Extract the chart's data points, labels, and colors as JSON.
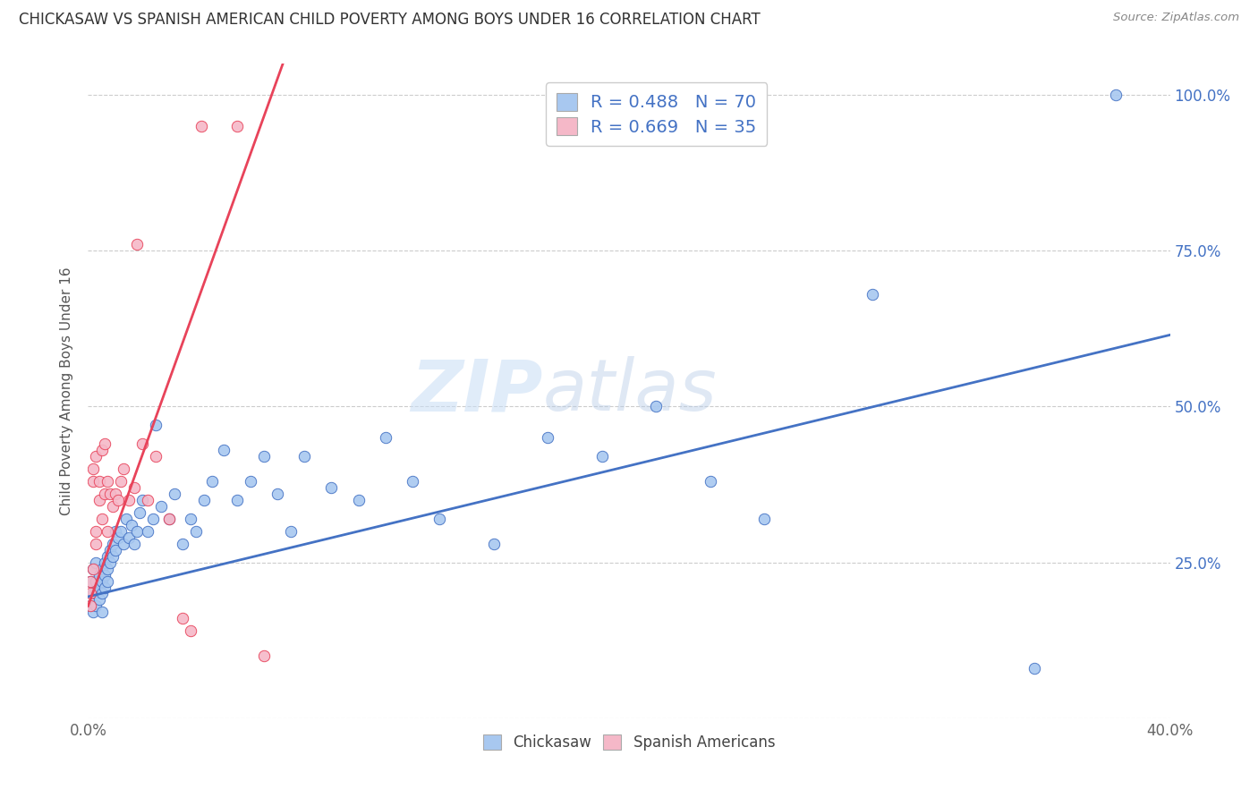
{
  "title": "CHICKASAW VS SPANISH AMERICAN CHILD POVERTY AMONG BOYS UNDER 16 CORRELATION CHART",
  "source": "Source: ZipAtlas.com",
  "ylabel": "Child Poverty Among Boys Under 16",
  "xlim": [
    0.0,
    0.4
  ],
  "ylim": [
    0.0,
    1.05
  ],
  "xtick_labels": [
    "0.0%",
    "",
    "",
    "",
    "",
    "40.0%"
  ],
  "xticks": [
    0.0,
    0.08,
    0.16,
    0.24,
    0.32,
    0.4
  ],
  "ytick_labels_right": [
    "",
    "25.0%",
    "50.0%",
    "75.0%",
    "100.0%"
  ],
  "yticks": [
    0.0,
    0.25,
    0.5,
    0.75,
    1.0
  ],
  "chickasaw_color": "#A8C8F0",
  "spanish_color": "#F5B8C8",
  "trendline_chickasaw_color": "#4472C4",
  "trendline_spanish_color": "#E8435A",
  "legend_text1": "R = 0.488   N = 70",
  "legend_text2": "R = 0.669   N = 35",
  "watermark_zip": "ZIP",
  "watermark_atlas": "atlas",
  "chickasaw_x": [
    0.001,
    0.001,
    0.002,
    0.002,
    0.002,
    0.003,
    0.003,
    0.003,
    0.003,
    0.004,
    0.004,
    0.004,
    0.005,
    0.005,
    0.005,
    0.005,
    0.006,
    0.006,
    0.006,
    0.007,
    0.007,
    0.007,
    0.008,
    0.008,
    0.009,
    0.009,
    0.01,
    0.01,
    0.011,
    0.012,
    0.013,
    0.014,
    0.015,
    0.016,
    0.017,
    0.018,
    0.019,
    0.02,
    0.022,
    0.024,
    0.025,
    0.027,
    0.03,
    0.032,
    0.035,
    0.038,
    0.04,
    0.043,
    0.046,
    0.05,
    0.055,
    0.06,
    0.065,
    0.07,
    0.075,
    0.08,
    0.09,
    0.1,
    0.11,
    0.12,
    0.13,
    0.15,
    0.17,
    0.19,
    0.21,
    0.23,
    0.25,
    0.29,
    0.35,
    0.38
  ],
  "chickasaw_y": [
    0.22,
    0.18,
    0.2,
    0.24,
    0.17,
    0.22,
    0.25,
    0.2,
    0.18,
    0.23,
    0.21,
    0.19,
    0.24,
    0.22,
    0.2,
    0.17,
    0.25,
    0.23,
    0.21,
    0.26,
    0.24,
    0.22,
    0.27,
    0.25,
    0.28,
    0.26,
    0.3,
    0.27,
    0.29,
    0.3,
    0.28,
    0.32,
    0.29,
    0.31,
    0.28,
    0.3,
    0.33,
    0.35,
    0.3,
    0.32,
    0.47,
    0.34,
    0.32,
    0.36,
    0.28,
    0.32,
    0.3,
    0.35,
    0.38,
    0.43,
    0.35,
    0.38,
    0.42,
    0.36,
    0.3,
    0.42,
    0.37,
    0.35,
    0.45,
    0.38,
    0.32,
    0.28,
    0.45,
    0.42,
    0.5,
    0.38,
    0.32,
    0.68,
    0.08,
    1.0
  ],
  "spanish_x": [
    0.001,
    0.001,
    0.001,
    0.002,
    0.002,
    0.002,
    0.003,
    0.003,
    0.003,
    0.004,
    0.004,
    0.005,
    0.005,
    0.006,
    0.006,
    0.007,
    0.007,
    0.008,
    0.009,
    0.01,
    0.011,
    0.012,
    0.013,
    0.015,
    0.017,
    0.018,
    0.02,
    0.022,
    0.025,
    0.03,
    0.035,
    0.038,
    0.042,
    0.055,
    0.065
  ],
  "spanish_y": [
    0.22,
    0.2,
    0.18,
    0.24,
    0.4,
    0.38,
    0.3,
    0.28,
    0.42,
    0.35,
    0.38,
    0.32,
    0.43,
    0.36,
    0.44,
    0.38,
    0.3,
    0.36,
    0.34,
    0.36,
    0.35,
    0.38,
    0.4,
    0.35,
    0.37,
    0.76,
    0.44,
    0.35,
    0.42,
    0.32,
    0.16,
    0.14,
    0.95,
    0.95,
    0.1
  ],
  "trendline_chick_x0": 0.0,
  "trendline_chick_y0": 0.195,
  "trendline_chick_x1": 0.4,
  "trendline_chick_y1": 0.615,
  "trendline_span_x0": 0.0,
  "trendline_span_y0": 0.18,
  "trendline_span_x1": 0.072,
  "trendline_span_y1": 1.05
}
